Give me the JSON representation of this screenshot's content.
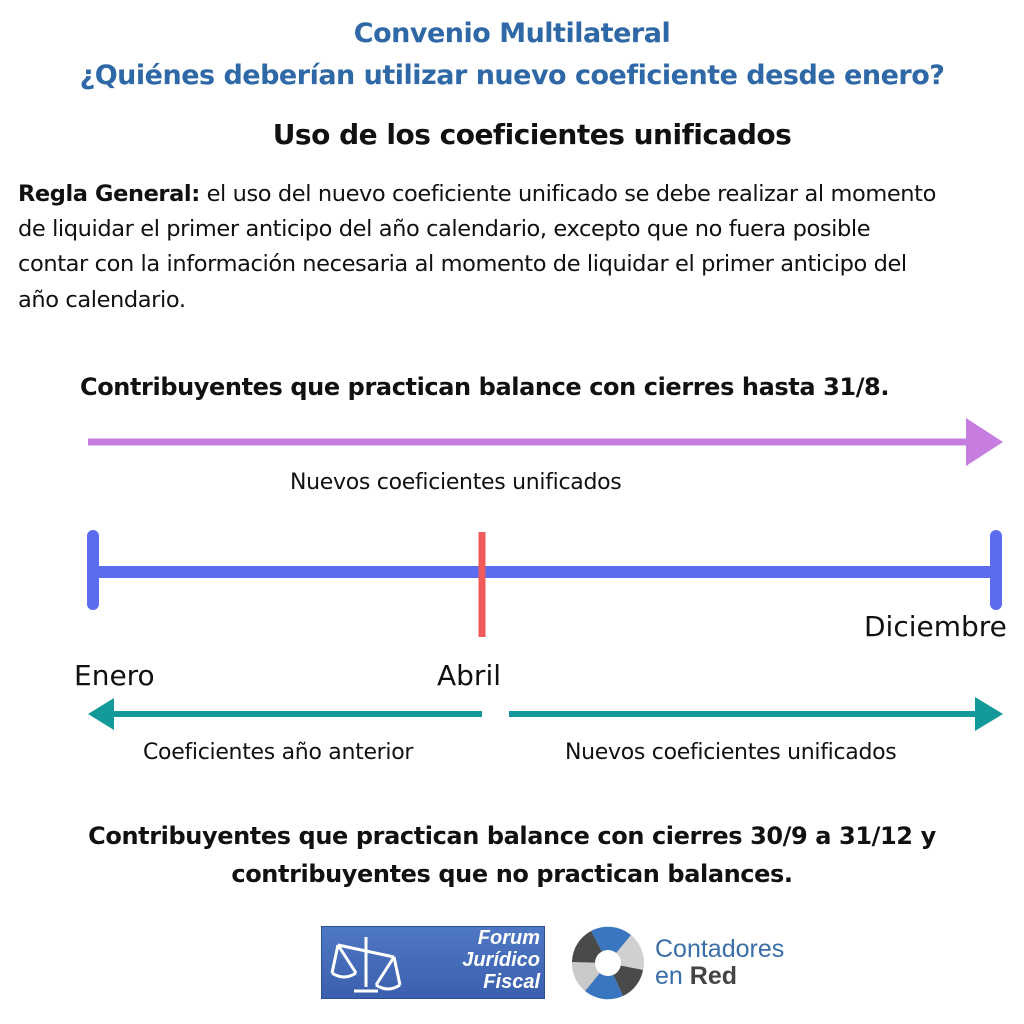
{
  "header": {
    "title": "Convenio Multilateral",
    "question": "¿Quiénes deberían utilizar nuevo coeficiente desde enero?",
    "subtitle": "Uso de los coeficientes unificados"
  },
  "rule": {
    "label": "Regla General:",
    "lines": [
      " el uso del nuevo coeficiente unificado se debe realizar al momento",
      "de liquidar el primer anticipo del año calendario, excepto que no fuera posible",
      "contar con la información necesaria al momento de liquidar el primer anticipo del",
      "año calendario."
    ]
  },
  "diagram": {
    "group1_heading": "Contribuyentes que practican balance con cierres hasta 31/8.",
    "group1_arrow_label": "Nuevos coeficientes unificados",
    "months": {
      "start": "Enero",
      "mid": "Abril",
      "end": "Diciembre"
    },
    "group2_left_label": "Coeficientes año anterior",
    "group2_right_label": "Nuevos coeficientes unificados",
    "group2_heading_lines": [
      "Contribuyentes que practican balance con cierres 30/9 a 31/12 y",
      "contribuyentes que no practican balances."
    ],
    "colors": {
      "title": "#2f68a6",
      "group1_arrow": "#c77ce0",
      "timeline": "#5b6cf0",
      "marker": "#f05a5a",
      "group2_arrows": "#13999a"
    }
  },
  "logos": {
    "forum": [
      "Forum",
      "Jurídico",
      "Fiscal"
    ],
    "contadores": {
      "line1": "Contadores",
      "line2_a": "en ",
      "line2_b": "Red"
    }
  }
}
